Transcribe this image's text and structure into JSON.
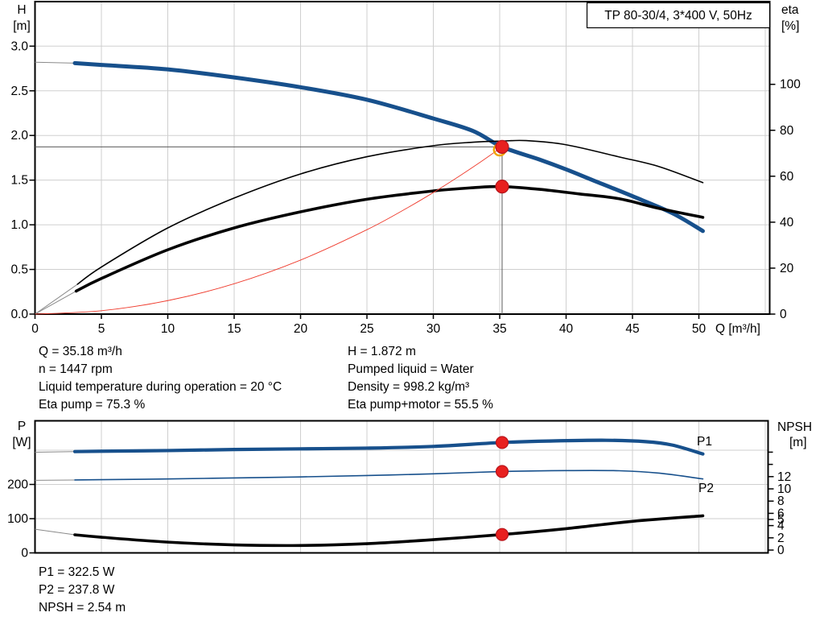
{
  "title_box": "TP 80-30/4, 3*400 V, 50Hz",
  "colors": {
    "blue": "#17508c",
    "black": "#000000",
    "red_line": "#ef3b2d",
    "dot_fill": "#e8201f",
    "dot_edge": "#b5141b",
    "yellow": "#f0a500",
    "grid": "#cfcfcf",
    "helper": "#5a5a5a",
    "lead": "#8a8a8a"
  },
  "info": {
    "col1": [
      "Q = 35.18 m³/h",
      "n = 1447 rpm",
      "Liquid temperature during operation = 20 °C",
      "Eta pump = 75.3 %"
    ],
    "col2": [
      "H = 1.872 m",
      "Pumped liquid = Water",
      "Density = 998.2 kg/m³",
      "Eta pump+motor = 55.5 %"
    ],
    "bottom": [
      "P1 = 322.5 W",
      "P2 = 237.8 W",
      "NPSH = 2.54 m"
    ]
  },
  "chart_data": [
    {
      "type": "line",
      "title": "TP 80-30/4, 3*400 V, 50Hz",
      "x_axis": {
        "label": "Q [m³/h]",
        "ticks": [
          0,
          5,
          10,
          15,
          20,
          25,
          30,
          35,
          40,
          45,
          50
        ],
        "range": [
          0,
          55.4
        ],
        "grid": true
      },
      "y_left": {
        "label": "H",
        "unit": "[m]",
        "tick_labels": [
          "3.0",
          "2.5",
          "2.0",
          "1.5",
          "1.0",
          "0.5",
          "0.0"
        ],
        "tick_values": [
          3.0,
          2.5,
          2.0,
          1.5,
          1.0,
          0.5,
          0.0
        ],
        "range": [
          0,
          3.5
        ],
        "grid_values": [
          0.5,
          1.0,
          1.5,
          2.0,
          2.5,
          3.0
        ]
      },
      "y_right": {
        "label": "eta",
        "unit": "[%]",
        "tick_values": [
          100,
          80,
          60,
          40,
          20,
          0
        ],
        "range": [
          0,
          136
        ]
      },
      "series": [
        {
          "name": "qh-curve",
          "axis": "left",
          "color": "blue",
          "width": 5,
          "lead": true,
          "x": [
            0,
            3,
            5,
            10,
            15,
            20,
            25,
            30,
            33,
            35.18,
            38,
            40,
            42,
            45,
            48,
            50.3
          ],
          "y": [
            2.82,
            2.81,
            2.79,
            2.74,
            2.65,
            2.54,
            2.4,
            2.19,
            2.05,
            1.872,
            1.73,
            1.62,
            1.5,
            1.32,
            1.13,
            0.93
          ]
        },
        {
          "name": "eta-pump-curve",
          "axis": "right",
          "color": "black",
          "width": 1.6,
          "lead": true,
          "x": [
            0,
            3.2,
            5,
            10,
            15,
            20,
            25,
            30,
            33,
            35.18,
            37,
            40,
            44,
            47,
            50.3
          ],
          "y": [
            0,
            13,
            20.5,
            37.5,
            50.5,
            61,
            68.5,
            73.3,
            74.8,
            75.3,
            75.5,
            73.7,
            68.4,
            64.2,
            57.2
          ]
        },
        {
          "name": "eta-pump-motor-curve",
          "axis": "right",
          "color": "black",
          "width": 3.6,
          "lead": true,
          "x": [
            0,
            3.1,
            5,
            10,
            15,
            20,
            25,
            30,
            33,
            35.18,
            38,
            41,
            44,
            47,
            50.3
          ],
          "y": [
            0,
            10,
            15.5,
            28,
            37.5,
            44.5,
            50,
            53.6,
            55,
            55.5,
            54.3,
            52.3,
            50.2,
            46,
            42.1
          ]
        },
        {
          "name": "system-curve",
          "axis": "left",
          "color": "red_line",
          "width": 0.9,
          "lead": false,
          "x": [
            0,
            5,
            10,
            15,
            20,
            25,
            28,
            30,
            32,
            33.5,
            35.18
          ],
          "y": [
            0,
            0.038,
            0.151,
            0.34,
            0.605,
            0.945,
            1.186,
            1.361,
            1.549,
            1.697,
            1.872
          ]
        }
      ],
      "duty_point": {
        "q": 35.18,
        "h": 1.872,
        "eta_pump": 75.3,
        "eta_pump_motor": 55.5
      }
    },
    {
      "type": "line",
      "x_axis": {
        "label": "",
        "ticks": [],
        "range": [
          0,
          55.2
        ],
        "grid": true
      },
      "y_left": {
        "label": "P",
        "unit": "[W]",
        "tick_values": [
          200,
          100,
          0
        ],
        "range": [
          0,
          386
        ],
        "grid_values": [
          100,
          200,
          300
        ]
      },
      "y_right": {
        "label": "NPSH",
        "unit": "[m]",
        "tick_values": [
          12,
          10,
          8,
          6,
          5,
          4,
          2,
          0
        ],
        "minor_ticks": [
          16,
          14
        ],
        "range": [
          0,
          21
        ]
      },
      "series": [
        {
          "name": "p1-curve",
          "axis": "left",
          "color": "blue",
          "width": 4.2,
          "lead": true,
          "x": [
            0,
            3,
            5,
            10,
            15,
            20,
            25,
            30,
            35.18,
            39,
            43,
            46,
            48,
            50.3
          ],
          "y": [
            294,
            296,
            297,
            299,
            302,
            304,
            306,
            311,
            322.5,
            327,
            329,
            325,
            315,
            289
          ]
        },
        {
          "name": "p2-curve",
          "axis": "left",
          "color": "blue",
          "width": 1.6,
          "lead": true,
          "x": [
            0,
            3,
            5,
            10,
            15,
            20,
            25,
            30,
            35.18,
            40,
            44,
            47,
            50.3
          ],
          "y": [
            212,
            213,
            214,
            216,
            219,
            222,
            226,
            231,
            237.8,
            240.5,
            240,
            233,
            216
          ]
        },
        {
          "name": "npsh-curve",
          "axis": "right",
          "color": "black",
          "width": 3.6,
          "lead": true,
          "x": [
            0,
            3,
            5,
            10,
            15,
            20,
            25,
            30,
            35.18,
            40,
            45,
            50.3
          ],
          "y": [
            3.4,
            2.5,
            2.1,
            1.3,
            0.85,
            0.75,
            1.05,
            1.7,
            2.54,
            3.5,
            4.7,
            5.6
          ]
        }
      ],
      "series_labels": [
        {
          "text": "P1"
        },
        {
          "text": "P2"
        }
      ],
      "duty_point": {
        "q": 35.18,
        "p1": 322.5,
        "p2": 237.8,
        "npsh": 2.54
      }
    }
  ]
}
